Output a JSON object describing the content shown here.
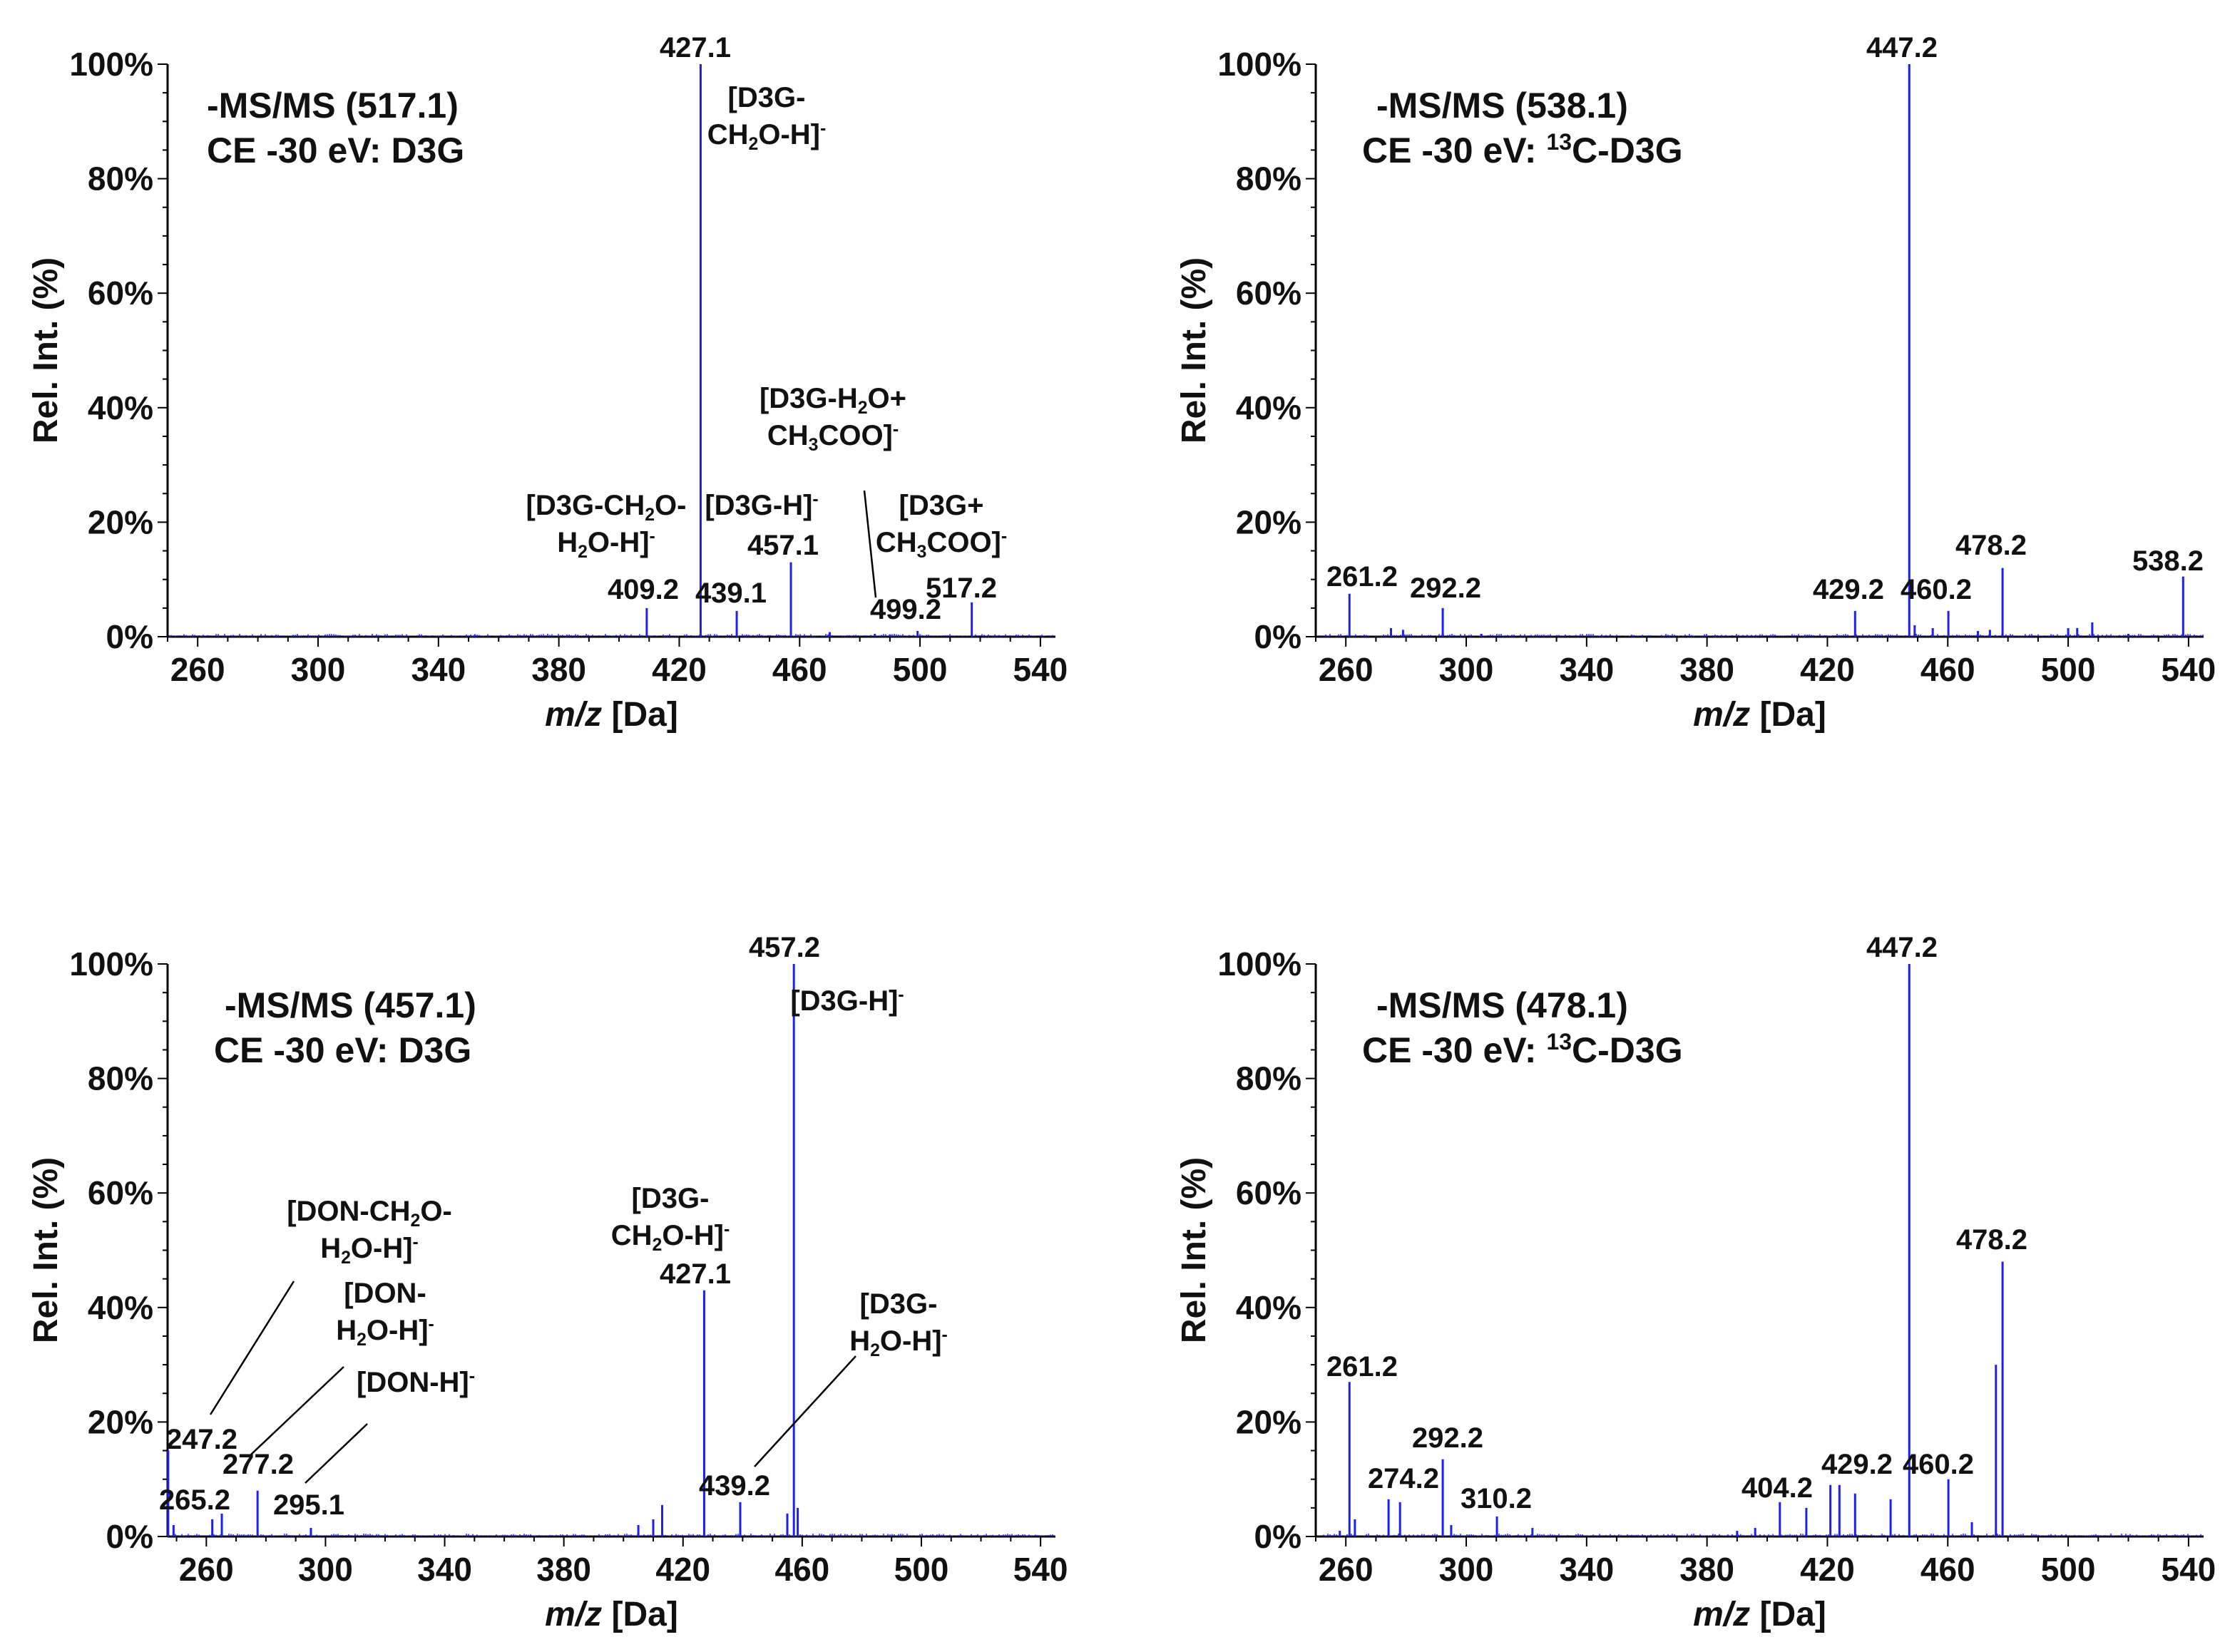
{
  "colors": {
    "spectrum": "#1f1fe8",
    "axis": "#000000",
    "text": "#111111"
  },
  "axis_common": {
    "xlabel_italic": "m/z",
    "xlabel_rest": " [Da]",
    "ylabel": "Rel. Int. (%)",
    "xticks": [
      "260",
      "300",
      "340",
      "380",
      "420",
      "460",
      "500",
      "540"
    ],
    "yticks": [
      "0%",
      "20%",
      "40%",
      "60%",
      "80%",
      "100%"
    ]
  },
  "chart_data": [
    {
      "type": "bar",
      "title": "-MS/MS (517.1)",
      "subtitle": {
        "prefix": "CE -30 eV: ",
        "sup": "",
        "name": "D3G"
      },
      "xlabel": "m/z [Da]",
      "ylabel": "Rel. Int. (%)",
      "xlim": [
        250,
        545
      ],
      "ylim": [
        0,
        100
      ],
      "peaks": [
        {
          "mz": 409.2,
          "rel": 5
        },
        {
          "mz": 427.1,
          "rel": 100
        },
        {
          "mz": 439.1,
          "rel": 4.5
        },
        {
          "mz": 457.1,
          "rel": 13
        },
        {
          "mz": 499.2,
          "rel": 1
        },
        {
          "mz": 517.2,
          "rel": 6
        },
        {
          "mz": 352,
          "rel": 0.3
        },
        {
          "mz": 470,
          "rel": 0.8
        },
        {
          "mz": 485,
          "rel": 0.5
        },
        {
          "mz": 490,
          "rel": 0.4
        }
      ],
      "peak_labels": [
        {
          "text": "427.1",
          "mz": 427.1,
          "rel": 100
        },
        {
          "text": "409.2",
          "mz": 409.2,
          "rel": 5
        },
        {
          "text": "439.1",
          "mz": 439.1,
          "rel": 4.5
        },
        {
          "text": "457.1",
          "mz": 457.1,
          "rel": 13
        },
        {
          "text": "499.2",
          "mz": 499.2,
          "rel": 1
        },
        {
          "text": "517.2",
          "mz": 517.2,
          "rel": 6
        }
      ],
      "annotations": [
        {
          "lines": [
            {
              "pre": "[D3G-",
              "sub": "",
              "post": "",
              "sup": ""
            },
            {
              "pre": "CH",
              "sub": "2",
              "post": "O-H]",
              "sup": "-"
            }
          ]
        },
        {
          "lines": [
            {
              "pre": "[D3G-CH",
              "sub": "2",
              "post": "O-",
              "sup": ""
            },
            {
              "pre": "H",
              "sub": "2",
              "post": "O-H]",
              "sup": "-"
            }
          ]
        },
        {
          "lines": [
            {
              "pre": "[D3G-H]",
              "sub": "",
              "post": "",
              "sup": "-"
            }
          ]
        },
        {
          "lines": [
            {
              "pre": "[D3G-H",
              "sub": "2",
              "post": "O+",
              "sup": ""
            },
            {
              "pre": "CH",
              "sub": "3",
              "post": "COO]",
              "sup": "-"
            }
          ]
        },
        {
          "lines": [
            {
              "pre": "[D3G+",
              "sub": "",
              "post": "",
              "sup": ""
            },
            {
              "pre": "CH",
              "sub": "3",
              "post": "COO]",
              "sup": "-"
            }
          ]
        }
      ]
    },
    {
      "type": "bar",
      "title": "-MS/MS (538.1)",
      "subtitle": {
        "prefix": "CE -30 eV: ",
        "sup": "13",
        "name": "C-D3G"
      },
      "xlabel": "m/z [Da]",
      "ylabel": "Rel. Int. (%)",
      "xlim": [
        250,
        545
      ],
      "ylim": [
        0,
        100
      ],
      "peaks": [
        {
          "mz": 261.2,
          "rel": 7.5
        },
        {
          "mz": 275,
          "rel": 1.5
        },
        {
          "mz": 279,
          "rel": 1.2
        },
        {
          "mz": 292.2,
          "rel": 5
        },
        {
          "mz": 305,
          "rel": 0.5
        },
        {
          "mz": 429.2,
          "rel": 4.5
        },
        {
          "mz": 447.2,
          "rel": 100
        },
        {
          "mz": 449,
          "rel": 2
        },
        {
          "mz": 455,
          "rel": 1.5
        },
        {
          "mz": 460.2,
          "rel": 4.5
        },
        {
          "mz": 470,
          "rel": 1
        },
        {
          "mz": 474,
          "rel": 1.2
        },
        {
          "mz": 478.2,
          "rel": 12
        },
        {
          "mz": 500,
          "rel": 1.5
        },
        {
          "mz": 503,
          "rel": 1.5
        },
        {
          "mz": 508,
          "rel": 2.5
        },
        {
          "mz": 520,
          "rel": 0.5
        },
        {
          "mz": 538.2,
          "rel": 10.5
        }
      ],
      "peak_labels": [
        {
          "text": "447.2",
          "mz": 447.2,
          "rel": 100
        },
        {
          "text": "261.2",
          "mz": 261.2,
          "rel": 7.5
        },
        {
          "text": "292.2",
          "mz": 292.2,
          "rel": 5
        },
        {
          "text": "429.2",
          "mz": 429.2,
          "rel": 4.5
        },
        {
          "text": "460.2",
          "mz": 460.2,
          "rel": 4.5
        },
        {
          "text": "478.2",
          "mz": 478.2,
          "rel": 12
        },
        {
          "text": "538.2",
          "mz": 538.2,
          "rel": 10.5
        }
      ],
      "annotations": []
    },
    {
      "type": "bar",
      "title": "-MS/MS (457.1)",
      "subtitle": {
        "prefix": "CE -30 eV: ",
        "sup": "",
        "name": "D3G"
      },
      "xlabel": "m/z [Da]",
      "ylabel": "Rel. Int. (%)",
      "xlim": [
        247,
        545
      ],
      "ylim": [
        0,
        100
      ],
      "peaks": [
        {
          "mz": 247.2,
          "rel": 15
        },
        {
          "mz": 249,
          "rel": 2
        },
        {
          "mz": 262,
          "rel": 3
        },
        {
          "mz": 265.2,
          "rel": 4
        },
        {
          "mz": 277.2,
          "rel": 8
        },
        {
          "mz": 295.1,
          "rel": 1.5
        },
        {
          "mz": 405,
          "rel": 2
        },
        {
          "mz": 410,
          "rel": 3
        },
        {
          "mz": 413,
          "rel": 5.5
        },
        {
          "mz": 427.1,
          "rel": 43
        },
        {
          "mz": 439.2,
          "rel": 6
        },
        {
          "mz": 455,
          "rel": 4
        },
        {
          "mz": 457.2,
          "rel": 100
        },
        {
          "mz": 458.5,
          "rel": 5
        }
      ],
      "peak_labels": [
        {
          "text": "457.2",
          "mz": 457.2,
          "rel": 100
        },
        {
          "text": "247.2",
          "mz": 247.2,
          "rel": 15
        },
        {
          "text": "265.2",
          "mz": 265.2,
          "rel": 4
        },
        {
          "text": "277.2",
          "mz": 277.2,
          "rel": 8
        },
        {
          "text": "295.1",
          "mz": 295.1,
          "rel": 1.5
        },
        {
          "text": "427.1",
          "mz": 427.1,
          "rel": 43
        },
        {
          "text": "439.2",
          "mz": 439.2,
          "rel": 6
        }
      ],
      "annotations": [
        {
          "lines": [
            {
              "pre": "[D3G-H]",
              "sub": "",
              "post": "",
              "sup": "-"
            }
          ]
        },
        {
          "lines": [
            {
              "pre": "[D3G-",
              "sub": "",
              "post": "",
              "sup": ""
            },
            {
              "pre": "CH",
              "sub": "2",
              "post": "O-H]",
              "sup": "-"
            }
          ]
        },
        {
          "lines": [
            {
              "pre": "[D3G-",
              "sub": "",
              "post": "",
              "sup": ""
            },
            {
              "pre": "H",
              "sub": "2",
              "post": "O-H]",
              "sup": "-"
            }
          ]
        },
        {
          "lines": [
            {
              "pre": "[DON-CH",
              "sub": "2",
              "post": "O-",
              "sup": ""
            },
            {
              "pre": "H",
              "sub": "2",
              "post": "O-H]",
              "sup": "-"
            }
          ]
        },
        {
          "lines": [
            {
              "pre": "[DON-",
              "sub": "",
              "post": "",
              "sup": ""
            },
            {
              "pre": "H",
              "sub": "2",
              "post": "O-H]",
              "sup": "-"
            }
          ]
        },
        {
          "lines": [
            {
              "pre": "[DON-H]",
              "sub": "",
              "post": "",
              "sup": "-"
            }
          ]
        }
      ]
    },
    {
      "type": "bar",
      "title": "-MS/MS (478.1)",
      "subtitle": {
        "prefix": "CE -30 eV: ",
        "sup": "13",
        "name": "C-D3G"
      },
      "xlabel": "m/z [Da]",
      "ylabel": "Rel. Int. (%)",
      "xlim": [
        250,
        545
      ],
      "ylim": [
        0,
        100
      ],
      "peaks": [
        {
          "mz": 258,
          "rel": 1
        },
        {
          "mz": 261.2,
          "rel": 27
        },
        {
          "mz": 263,
          "rel": 3
        },
        {
          "mz": 274.2,
          "rel": 6.5
        },
        {
          "mz": 278,
          "rel": 6
        },
        {
          "mz": 292.2,
          "rel": 13.5
        },
        {
          "mz": 295,
          "rel": 2
        },
        {
          "mz": 310.2,
          "rel": 3.5
        },
        {
          "mz": 322,
          "rel": 1.5
        },
        {
          "mz": 390,
          "rel": 1
        },
        {
          "mz": 396,
          "rel": 1.5
        },
        {
          "mz": 404.2,
          "rel": 6
        },
        {
          "mz": 413,
          "rel": 5
        },
        {
          "mz": 421,
          "rel": 9
        },
        {
          "mz": 424,
          "rel": 9
        },
        {
          "mz": 429.2,
          "rel": 7.5
        },
        {
          "mz": 441,
          "rel": 6.5
        },
        {
          "mz": 447.2,
          "rel": 100
        },
        {
          "mz": 460.2,
          "rel": 10
        },
        {
          "mz": 468,
          "rel": 2.5
        },
        {
          "mz": 476,
          "rel": 30
        },
        {
          "mz": 478.2,
          "rel": 48
        }
      ],
      "peak_labels": [
        {
          "text": "447.2",
          "mz": 447.2,
          "rel": 100
        },
        {
          "text": "261.2",
          "mz": 261.2,
          "rel": 27
        },
        {
          "text": "274.2",
          "mz": 274.2,
          "rel": 6.5
        },
        {
          "text": "292.2",
          "mz": 292.2,
          "rel": 13.5
        },
        {
          "text": "310.2",
          "mz": 310.2,
          "rel": 3.5
        },
        {
          "text": "404.2",
          "mz": 404.2,
          "rel": 6
        },
        {
          "text": "429.2",
          "mz": 429.2,
          "rel": 7.5
        },
        {
          "text": "460.2",
          "mz": 460.2,
          "rel": 10
        },
        {
          "text": "478.2",
          "mz": 478.2,
          "rel": 48
        }
      ],
      "annotations": []
    }
  ]
}
